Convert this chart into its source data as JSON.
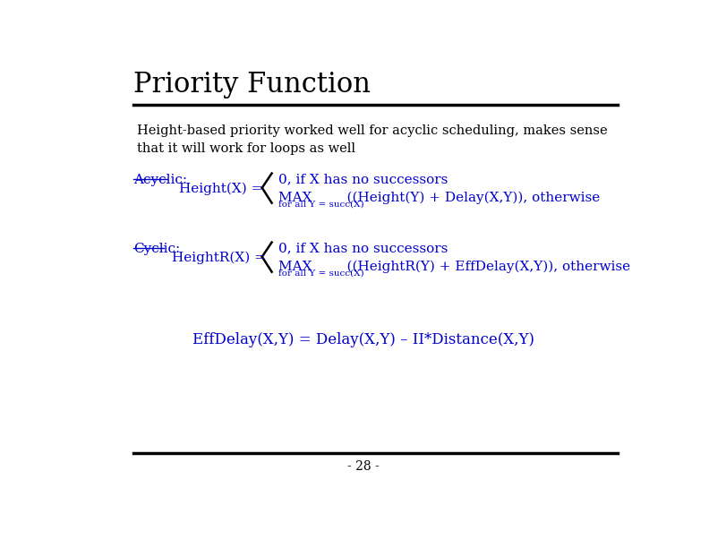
{
  "title": "Priority Function",
  "subtitle": "Height-based priority worked well for acyclic scheduling, makes sense\nthat it will work for loops as well",
  "background_color": "#ffffff",
  "title_color": "#000000",
  "subtitle_color": "#000000",
  "blue_color": "#0000cc",
  "acyclic_label": "Acyclic:",
  "acyclic_eq": "Height(X) =",
  "acyclic_line1": "0, if X has no successors",
  "acyclic_line2": "MAX        ((Height(Y) + Delay(X,Y)), otherwise",
  "acyclic_line2b": "for all Y = succ(X)",
  "cyclic_label": "Cyclic:",
  "cyclic_eq": "HeightR(X) =",
  "cyclic_line1": "0, if X has no successors",
  "cyclic_line2": "MAX        ((HeightR(Y) + EffDelay(X,Y)), otherwise",
  "cyclic_line2b": "for all Y = succ(X)",
  "bottom_formula": "EffDelay(X,Y) = Delay(X,Y) – II*Distance(X,Y)",
  "page_number": "- 28 -"
}
